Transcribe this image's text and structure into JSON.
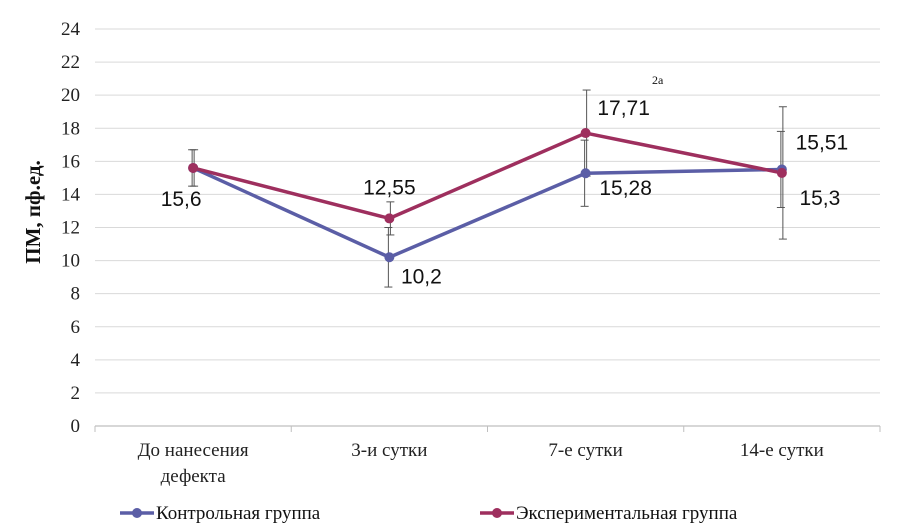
{
  "chart_data": {
    "type": "line",
    "title": "",
    "xlabel": "",
    "ylabel": "ПМ, пф.ед.",
    "ylim": [
      0,
      24
    ],
    "ytick_step": 2,
    "grid": true,
    "legend_position": "bottom",
    "categories": [
      "До нанесения дефекта",
      "3-и сутки",
      "7-е сутки",
      "14-е сутки"
    ],
    "series": [
      {
        "name": "Контрольная группа",
        "color": "#5B5EA6",
        "values": [
          15.6,
          10.2,
          15.28,
          15.51
        ],
        "labels": [
          "15,6",
          "10,2",
          "15,28",
          "15,51"
        ],
        "error": [
          1.1,
          1.8,
          2.0,
          2.3
        ]
      },
      {
        "name": "Экспериментальная группа",
        "color": "#9E2F5E",
        "values": [
          15.6,
          12.55,
          17.71,
          15.3
        ],
        "labels": [
          "",
          "12,55",
          "17,71",
          "15,3"
        ],
        "error": [
          1.1,
          1.0,
          2.6,
          4.0
        ]
      }
    ],
    "annotations": [
      {
        "text": "2а",
        "category": "7-е сутки",
        "series": "Экспериментальная группа"
      }
    ]
  }
}
